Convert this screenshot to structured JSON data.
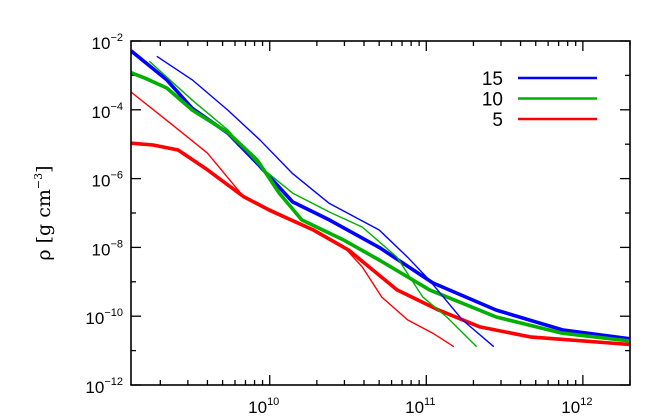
{
  "chart_data": {
    "type": "line",
    "title": "",
    "xlabel": "",
    "ylabel": "ρ [g cm",
    "ylabel_sup": "−3",
    "ylabel_close": "]",
    "xscale": "log",
    "yscale": "log",
    "xlim": [
      1300000000.0,
      2000000000000.0
    ],
    "ylim": [
      1e-12,
      0.01
    ],
    "x_ticks": [
      {
        "base": "10",
        "exp": "10",
        "value": 10000000000.0
      },
      {
        "base": "10",
        "exp": "11",
        "value": 100000000000.0
      },
      {
        "base": "10",
        "exp": "12",
        "value": 1000000000000.0
      }
    ],
    "y_ticks": [
      {
        "base": "10",
        "exp": "−2",
        "value": 0.01
      },
      {
        "base": "10",
        "exp": "−4",
        "value": 0.0001
      },
      {
        "base": "10",
        "exp": "−6",
        "value": 1e-06
      },
      {
        "base": "10",
        "exp": "−8",
        "value": 1e-08
      },
      {
        "base": "10",
        "exp": "−10",
        "value": 1e-10
      },
      {
        "base": "10",
        "exp": "−12",
        "value": 1e-12
      }
    ],
    "grid": false,
    "legend_position": "top-right",
    "legend": [
      {
        "label": "15",
        "color": "#0000ff"
      },
      {
        "label": "10",
        "color": "#00b000"
      },
      {
        "label": "5",
        "color": "#ff0000"
      }
    ],
    "series": [
      {
        "name": "15",
        "color": "#0000ff",
        "style": "thick",
        "x": [
          1300000000.0,
          2200000000.0,
          3200000000.0,
          5400000000.0,
          8300000000.0,
          14000000000.0,
          24000000000.0,
          50000000000.0,
          110000000000.0,
          280000000000.0,
          740000000000.0,
          2000000000000.0
        ],
        "y": [
          0.0052,
          0.00074,
          0.00011,
          2.1e-05,
          2.8e-06,
          2.1e-07,
          6.3e-08,
          1e-08,
          9.3e-10,
          1.5e-10,
          4e-11,
          2.2e-11
        ]
      },
      {
        "name": "10",
        "color": "#00b000",
        "style": "thick",
        "x": [
          1300000000.0,
          1600000000.0,
          2200000000.0,
          3200000000.0,
          5400000000.0,
          8300000000.0,
          11500000000.0,
          16000000000.0,
          30000000000.0,
          50000000000.0,
          105000000000.0,
          280000000000.0,
          740000000000.0,
          2000000000000.0
        ],
        "y": [
          0.0012,
          0.00083,
          0.00043,
          9.8e-05,
          2.2e-05,
          3.5e-06,
          3.8e-07,
          6.3e-08,
          1.6e-08,
          4.3e-09,
          5.8e-10,
          9.5e-11,
          3.2e-11,
          1.9e-11
        ]
      },
      {
        "name": "5",
        "color": "#ff0000",
        "style": "thick",
        "x": [
          1300000000.0,
          1800000000.0,
          2600000000.0,
          4000000000.0,
          6800000000.0,
          10000000000.0,
          19000000000.0,
          32000000000.0,
          65000000000.0,
          120000000000.0,
          220000000000.0,
          460000000000.0,
          2000000000000.0
        ],
        "y": [
          1.07e-05,
          9.5e-06,
          6.8e-06,
          1.8e-06,
          3e-07,
          1.2e-07,
          3.2e-08,
          8.3e-09,
          5.8e-10,
          1.5e-10,
          4.9e-11,
          2.5e-11,
          1.5e-11
        ]
      },
      {
        "name": "15",
        "color": "#0000ff",
        "style": "thin",
        "x": [
          1900000000.0,
          3200000000.0,
          5400000000.0,
          8700000000.0,
          14000000000.0,
          24000000000.0,
          50000000000.0,
          76000000000.0,
          105000000000.0,
          170000000000.0,
          270000000000.0
        ],
        "y": [
          0.0036,
          0.00074,
          9.8e-05,
          1.3e-05,
          1.4e-06,
          1.9e-07,
          3.2e-08,
          5.2e-09,
          1.1e-09,
          7.8e-11,
          1.3e-11
        ]
      },
      {
        "name": "10",
        "color": "#00b000",
        "style": "thin",
        "x": [
          1700000000.0,
          3200000000.0,
          5400000000.0,
          8700000000.0,
          14000000000.0,
          24000000000.0,
          39000000000.0,
          65000000000.0,
          95000000000.0,
          135000000000.0,
          210000000000.0
        ],
        "y": [
          0.0026,
          0.00019,
          2.6e-05,
          2.2e-06,
          3.8e-07,
          1.07e-07,
          3.9e-08,
          5.2e-09,
          3.6e-10,
          9.5e-11,
          1.3e-11
        ]
      },
      {
        "name": "5",
        "color": "#ff0000",
        "style": "thin",
        "x": [
          1300000000.0,
          2300000000.0,
          4000000000.0,
          6800000000.0,
          14000000000.0,
          30000000000.0,
          39000000000.0,
          52000000000.0,
          76000000000.0,
          110000000000.0,
          150000000000.0
        ],
        "y": [
          0.00033,
          4.2e-05,
          5.5e-06,
          3e-07,
          6.3e-08,
          1e-08,
          2.7e-09,
          3.6e-10,
          7.8e-11,
          3.2e-11,
          1.3e-11
        ]
      }
    ]
  }
}
